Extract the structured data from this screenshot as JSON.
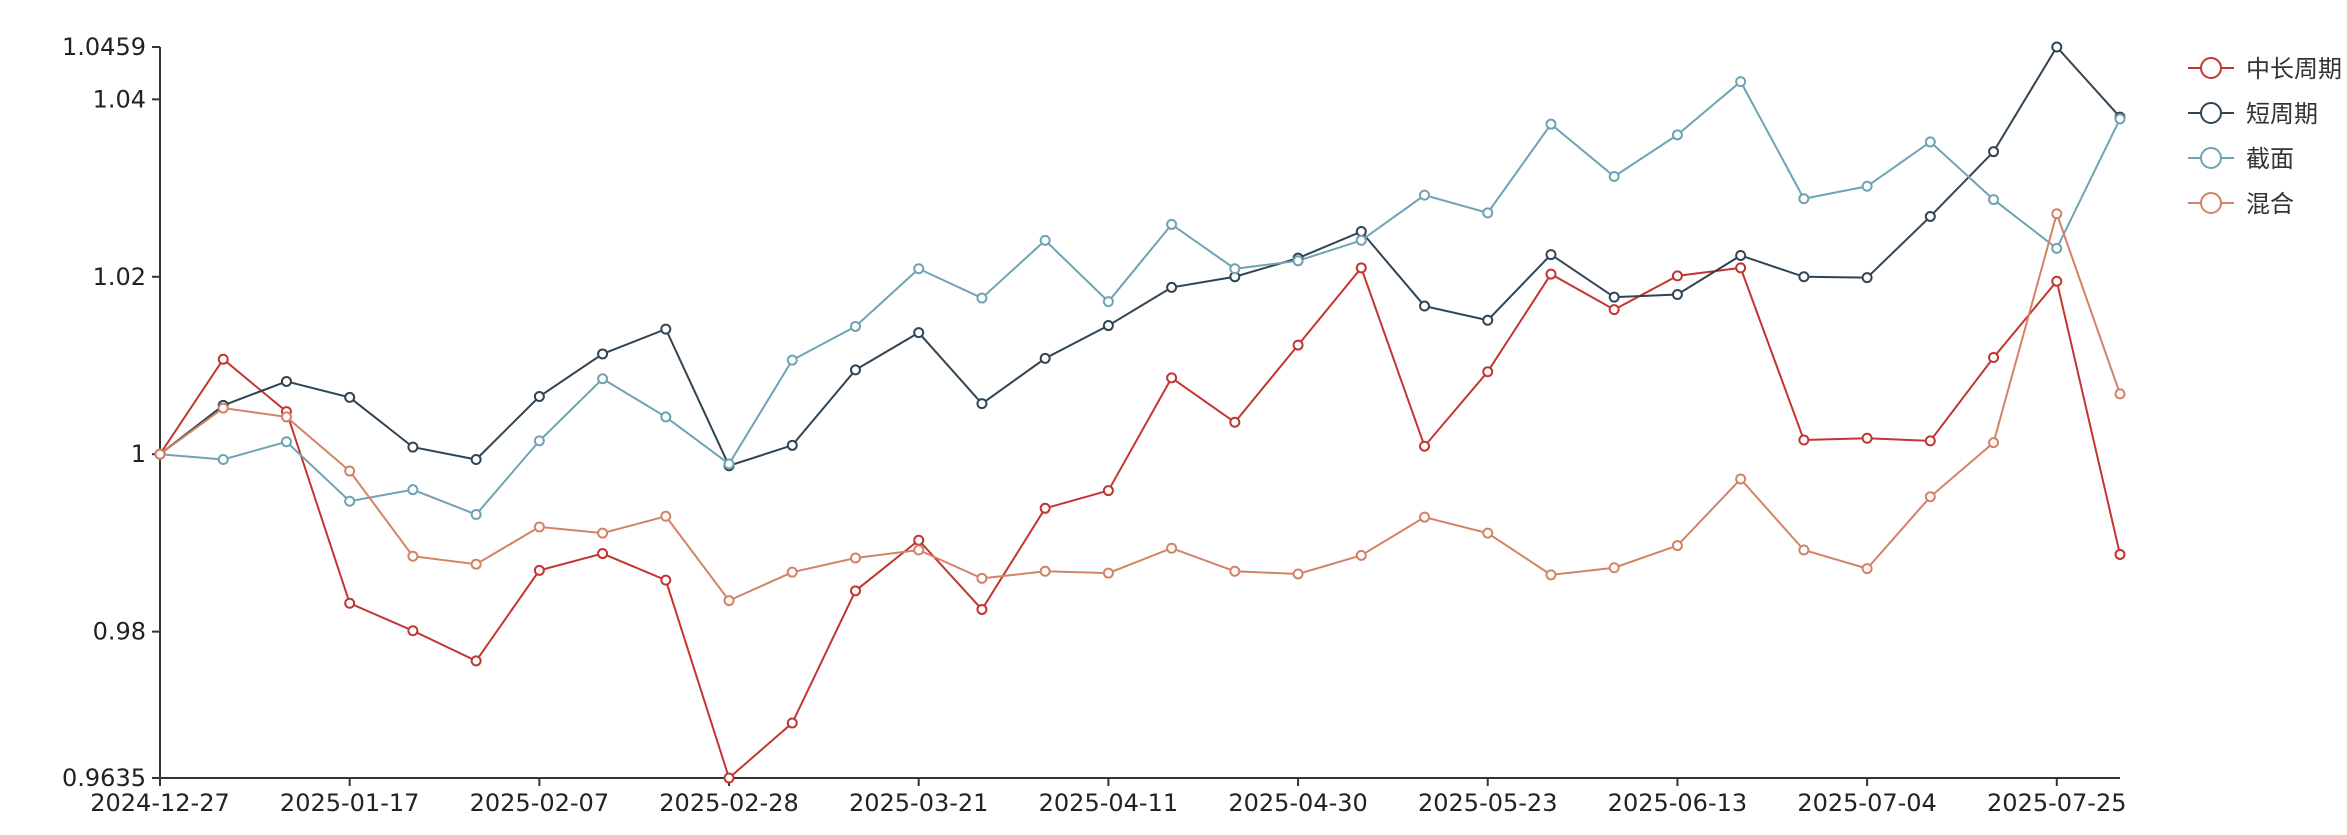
{
  "chart_data": {
    "type": "line",
    "x": [
      "2024-12-27",
      "2025-01-03",
      "2025-01-10",
      "2025-01-17",
      "2025-01-24",
      "2025-01-31",
      "2025-02-07",
      "2025-02-14",
      "2025-02-21",
      "2025-02-28",
      "2025-03-07",
      "2025-03-14",
      "2025-03-21",
      "2025-03-28",
      "2025-04-04",
      "2025-04-11",
      "2025-04-18",
      "2025-04-25",
      "2025-04-30",
      "2025-05-09",
      "2025-05-16",
      "2025-05-23",
      "2025-05-30",
      "2025-06-06",
      "2025-06-13",
      "2025-06-20",
      "2025-06-27",
      "2025-07-04",
      "2025-07-11",
      "2025-07-18",
      "2025-07-25",
      "2025-08-01"
    ],
    "x_tick_labels": [
      "2024-12-27",
      "2025-01-17",
      "2025-02-07",
      "2025-02-28",
      "2025-03-21",
      "2025-04-11",
      "2025-04-30",
      "2025-05-23",
      "2025-06-13",
      "2025-07-04",
      "2025-07-25"
    ],
    "y_tick_labels": [
      "0.9635",
      "0.98",
      "1",
      "1.02",
      "1.04",
      "1.0459"
    ],
    "ylim": [
      0.9635,
      1.0459
    ],
    "title": "",
    "xlabel": "",
    "ylabel": "",
    "legend_position": "top-right",
    "grid": false,
    "series": [
      {
        "name": "中长周期",
        "color": "#c23531",
        "values": [
          1.0,
          1.0107,
          1.0048,
          0.9832,
          0.9801,
          0.9767,
          0.9869,
          0.9888,
          0.9858,
          0.9635,
          0.9697,
          0.9846,
          0.9903,
          0.9825,
          0.9939,
          0.9959,
          1.0086,
          1.0036,
          1.0123,
          1.021,
          1.0009,
          1.0093,
          1.0203,
          1.0163,
          1.0201,
          1.021,
          1.0016,
          1.0018,
          1.0015,
          1.0109,
          1.0195,
          0.9887
        ]
      },
      {
        "name": "短周期",
        "color": "#2f4554",
        "values": [
          1.0,
          1.0055,
          1.0082,
          1.0064,
          1.0008,
          0.9994,
          1.0065,
          1.0113,
          1.0141,
          0.9987,
          1.001,
          1.0095,
          1.0137,
          1.0057,
          1.0108,
          1.0145,
          1.0188,
          1.02,
          1.0221,
          1.0251,
          1.0167,
          1.0151,
          1.0225,
          1.0177,
          1.018,
          1.0224,
          1.02,
          1.0199,
          1.0268,
          1.0341,
          1.0459,
          1.038
        ]
      },
      {
        "name": "截面",
        "color": "#6fa3b3",
        "values": [
          1.0,
          0.9994,
          1.0014,
          0.9947,
          0.996,
          0.9932,
          1.0015,
          1.0085,
          1.0042,
          0.9989,
          1.0106,
          1.0144,
          1.0209,
          1.0176,
          1.0241,
          1.0172,
          1.0259,
          1.0209,
          1.0218,
          1.0241,
          1.0292,
          1.0272,
          1.0372,
          1.0313,
          1.036,
          1.042,
          1.0288,
          1.0302,
          1.0352,
          1.0287,
          1.0232,
          1.0378
        ]
      },
      {
        "name": "混合",
        "color": "#d48265",
        "values": [
          1.0,
          1.0052,
          1.0042,
          0.9981,
          0.9885,
          0.9876,
          0.9918,
          0.9911,
          0.993,
          0.9835,
          0.9867,
          0.9883,
          0.9892,
          0.986,
          0.9868,
          0.9866,
          0.9894,
          0.9868,
          0.9865,
          0.9886,
          0.9929,
          0.9911,
          0.9864,
          0.9872,
          0.9897,
          0.9972,
          0.9892,
          0.9871,
          0.9952,
          1.0013,
          1.0271,
          1.0068
        ]
      }
    ]
  }
}
